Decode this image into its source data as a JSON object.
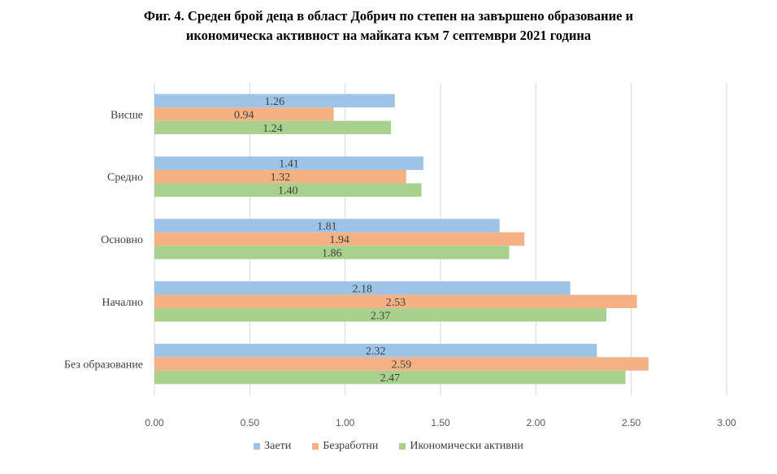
{
  "chart_data": {
    "type": "bar",
    "orientation": "horizontal",
    "title": "Фиг. 4. Среден брой деца в област Добрич по степен на завършено образование и икономическа активност на майката към 7 септември 2021 година",
    "title_lines": [
      "Фиг. 4. Среден брой деца в област Добрич по степен на завършено образование и",
      "икономическа активност на майката към 7 септември 2021 година"
    ],
    "categories": [
      "Висше",
      "Средно",
      "Основно",
      "Начално",
      "Без образование"
    ],
    "series": [
      {
        "name": "Заети",
        "color": "#9DC3E6",
        "values": [
          1.26,
          1.41,
          1.81,
          2.18,
          2.32
        ],
        "labels": [
          "1.26",
          "1.41",
          "1.81",
          "2.18",
          "2.32"
        ]
      },
      {
        "name": "Безработни",
        "color": "#F4B183",
        "values": [
          0.94,
          1.32,
          1.94,
          2.53,
          2.59
        ],
        "labels": [
          "0.94",
          "1.32",
          "1.94",
          "2.53",
          "2.59"
        ]
      },
      {
        "name": "Икономически активни",
        "color": "#A9D18E",
        "values": [
          1.24,
          1.4,
          1.86,
          2.37,
          2.47
        ],
        "labels": [
          "1.24",
          "1.40",
          "1.86",
          "2.37",
          "2.47"
        ]
      }
    ],
    "xlim": [
      0,
      3
    ],
    "xticks": [
      "0.00",
      "0.50",
      "1.00",
      "1.50",
      "2.00",
      "2.50",
      "3.00"
    ],
    "xlabel": "",
    "ylabel": "",
    "grid": true,
    "legend_position": "bottom"
  }
}
